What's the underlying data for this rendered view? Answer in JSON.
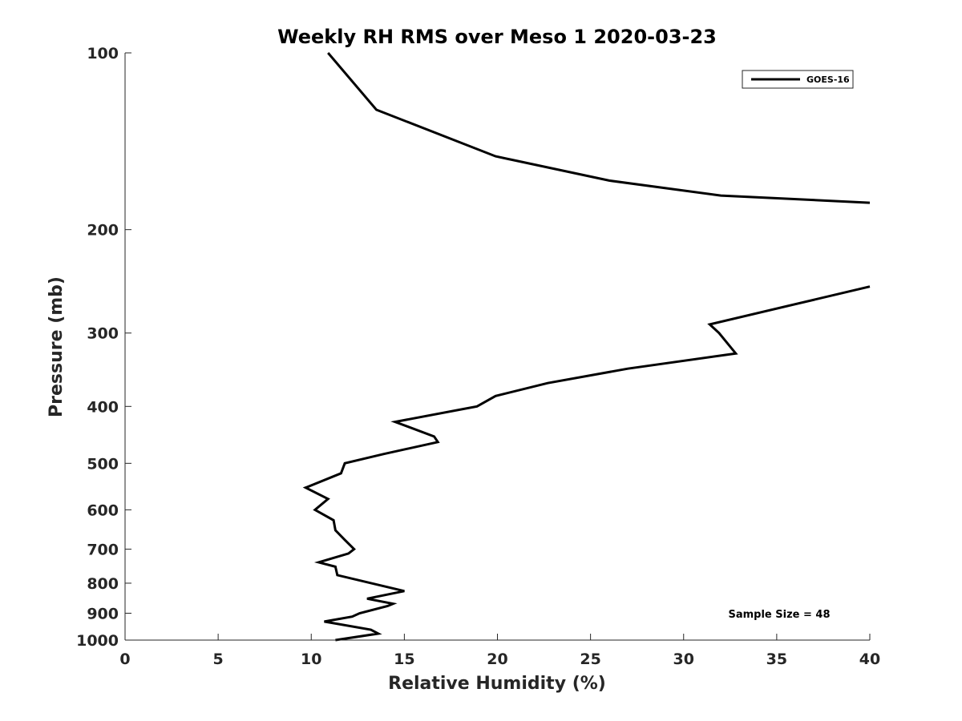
{
  "colors": {
    "background": "#ffffff",
    "axis": "#262626",
    "line": "#000000"
  },
  "chart_data": {
    "type": "line",
    "title": "Weekly RH RMS over Meso 1 2020-03-23",
    "xlabel": "Relative Humidity (%)",
    "ylabel": "Pressure (mb)",
    "xlim": [
      0,
      40
    ],
    "ylim": [
      1000,
      100
    ],
    "yscale": "log",
    "y_reversed": true,
    "grid": false,
    "legend_position": "top-right",
    "xticks": [
      0,
      5,
      10,
      15,
      20,
      25,
      30,
      35,
      40
    ],
    "xtick_labels": [
      "0",
      "5",
      "10",
      "15",
      "20",
      "25",
      "30",
      "35",
      "40"
    ],
    "yticks": [
      100,
      200,
      300,
      400,
      500,
      600,
      700,
      800,
      900,
      1000
    ],
    "ytick_labels": [
      "100",
      "200",
      "300",
      "400",
      "500",
      "600",
      "700",
      "800",
      "900",
      "1000"
    ],
    "annotation": "Sample Size = 48",
    "series": [
      {
        "name": "GOES-16",
        "color": "#000000",
        "points": [
          [
            10.9,
            100
          ],
          [
            13.5,
            125
          ],
          [
            19.9,
            150
          ],
          [
            26.0,
            165
          ],
          [
            32.0,
            175
          ],
          [
            40.0,
            180
          ],
          [
            null,
            null
          ],
          [
            40.0,
            250
          ],
          [
            31.4,
            290
          ],
          [
            31.9,
            300
          ],
          [
            32.8,
            325
          ],
          [
            27.0,
            345
          ],
          [
            22.7,
            365
          ],
          [
            19.9,
            384
          ],
          [
            18.9,
            400
          ],
          [
            14.5,
            425
          ],
          [
            16.6,
            450
          ],
          [
            16.8,
            460
          ],
          [
            13.9,
            482
          ],
          [
            11.8,
            500
          ],
          [
            11.6,
            520
          ],
          [
            9.7,
            550
          ],
          [
            10.9,
            575
          ],
          [
            10.2,
            600
          ],
          [
            11.2,
            625
          ],
          [
            11.3,
            650
          ],
          [
            11.8,
            675
          ],
          [
            12.3,
            700
          ],
          [
            12.0,
            712
          ],
          [
            10.4,
            737
          ],
          [
            11.3,
            750
          ],
          [
            11.4,
            775
          ],
          [
            15.0,
            825
          ],
          [
            13.0,
            850
          ],
          [
            14.4,
            867
          ],
          [
            14.1,
            875
          ],
          [
            12.6,
            900
          ],
          [
            12.2,
            912
          ],
          [
            10.7,
            930
          ],
          [
            13.2,
            960
          ],
          [
            13.6,
            975
          ],
          [
            11.3,
            1000
          ]
        ]
      }
    ]
  }
}
